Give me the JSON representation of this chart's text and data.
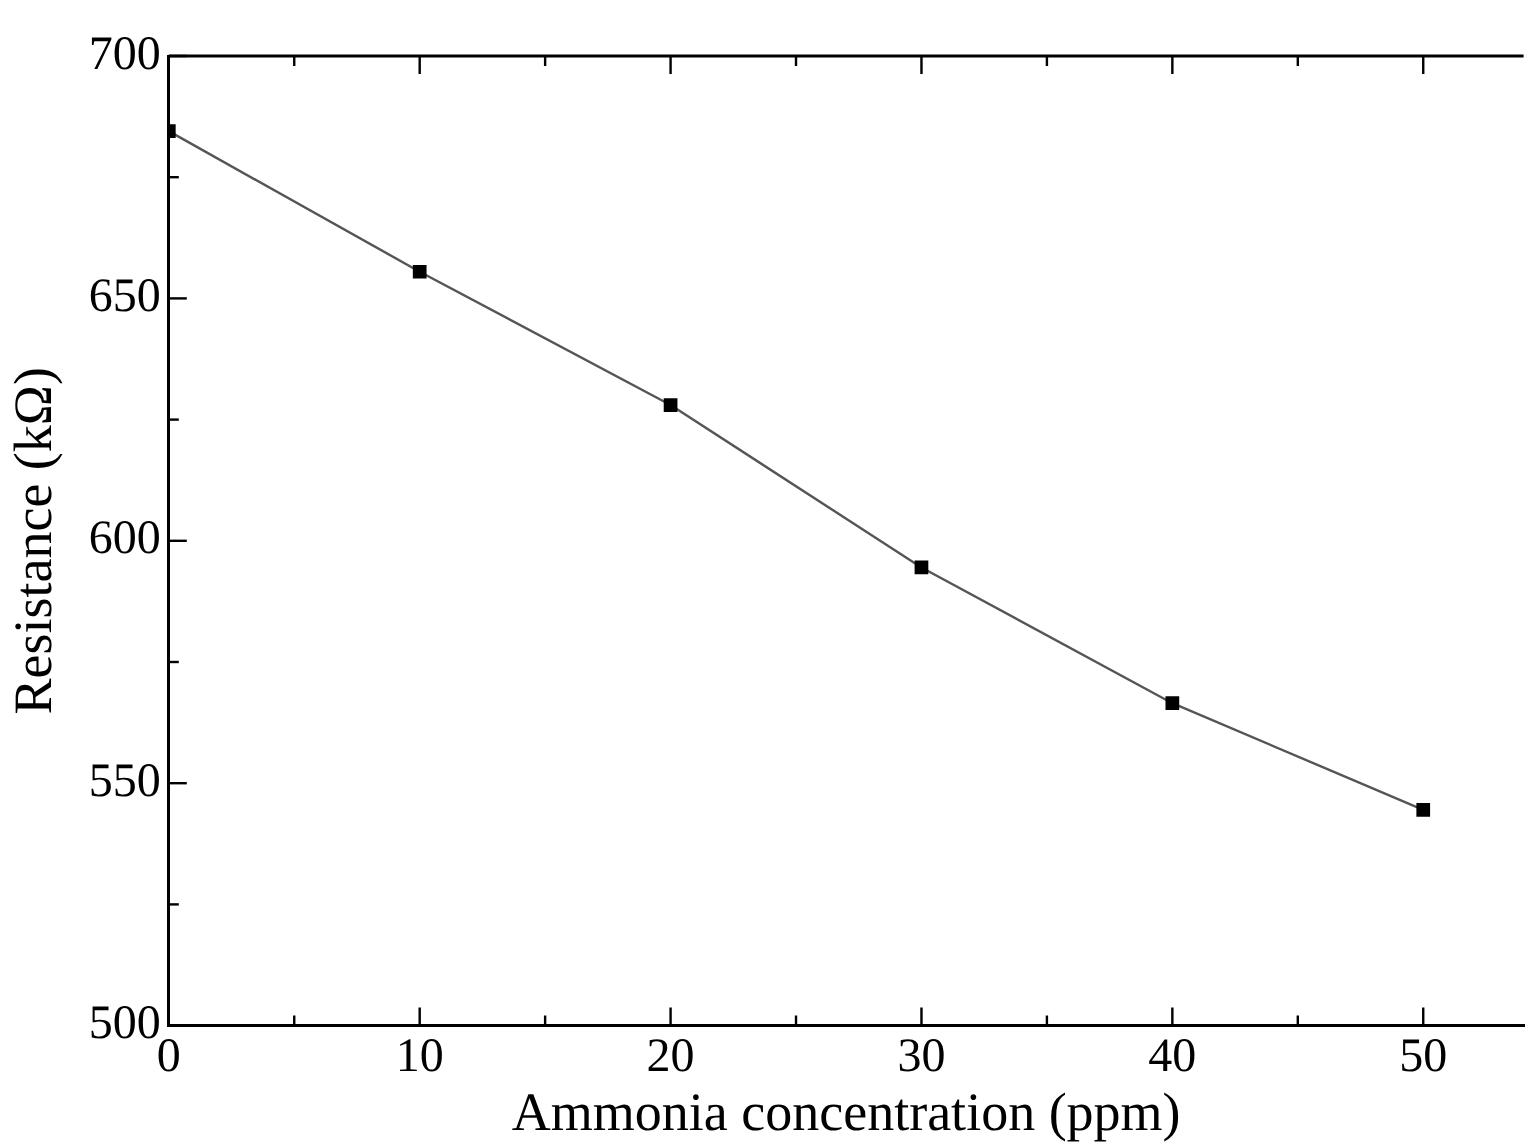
{
  "chart_data": {
    "type": "line",
    "xlabel": "Ammonia concentration (ppm)",
    "ylabel": "Resistance (kΩ)",
    "x": [
      0,
      10,
      20,
      30,
      40,
      50
    ],
    "series": [
      {
        "color": "#000000",
        "values": [
          684.5,
          655.5,
          628,
          594.5,
          566.5,
          544.5
        ]
      }
    ],
    "xlim": [
      0,
      54
    ],
    "xticks": [
      0,
      10,
      20,
      30,
      40,
      50
    ],
    "ylim": [
      500,
      700
    ],
    "yticks": [
      500,
      550,
      600,
      650,
      700
    ],
    "grid": false,
    "marker": "square",
    "line_style": "solid"
  }
}
